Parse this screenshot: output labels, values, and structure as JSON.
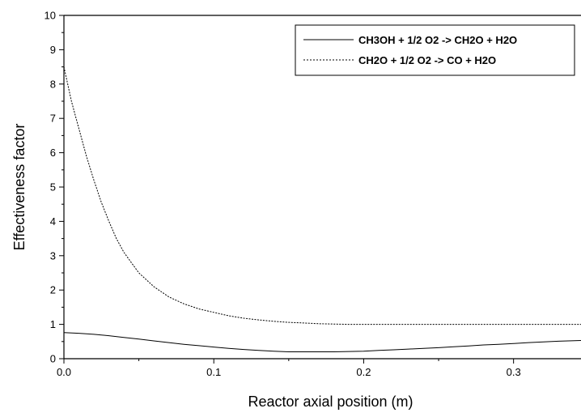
{
  "chart_data": {
    "type": "line",
    "xlabel": "Reactor axial position (m)",
    "ylabel": "Effectiveness factor",
    "xlim": [
      0.0,
      0.345
    ],
    "ylim": [
      0,
      10
    ],
    "x_ticks": [
      0.0,
      0.1,
      0.2,
      0.3
    ],
    "x_tick_labels": [
      "0.0",
      "0.1",
      "0.2",
      "0.3"
    ],
    "y_ticks": [
      0,
      1,
      2,
      3,
      4,
      5,
      6,
      7,
      8,
      9,
      10
    ],
    "y_tick_labels": [
      "0",
      "1",
      "2",
      "3",
      "4",
      "5",
      "6",
      "7",
      "8",
      "9",
      "10"
    ],
    "grid": false,
    "legend_position": "top-right",
    "series": [
      {
        "name": "CH3OH + 1/2 O2 -> CH2O + H2O",
        "line_style": "solid",
        "color": "#000000",
        "x": [
          0.0,
          0.01,
          0.02,
          0.03,
          0.04,
          0.05,
          0.06,
          0.07,
          0.08,
          0.09,
          0.1,
          0.11,
          0.12,
          0.13,
          0.14,
          0.15,
          0.16,
          0.17,
          0.18,
          0.19,
          0.2,
          0.21,
          0.22,
          0.23,
          0.24,
          0.25,
          0.26,
          0.27,
          0.28,
          0.29,
          0.3,
          0.31,
          0.32,
          0.33,
          0.345
        ],
        "y": [
          0.76,
          0.74,
          0.71,
          0.67,
          0.62,
          0.57,
          0.52,
          0.47,
          0.42,
          0.38,
          0.34,
          0.3,
          0.27,
          0.24,
          0.22,
          0.2,
          0.2,
          0.2,
          0.2,
          0.21,
          0.22,
          0.24,
          0.26,
          0.28,
          0.3,
          0.32,
          0.35,
          0.37,
          0.4,
          0.42,
          0.44,
          0.47,
          0.49,
          0.51,
          0.53
        ]
      },
      {
        "name": "CH2O + 1/2 O2 -> CO + H2O",
        "line_style": "dashed",
        "color": "#000000",
        "x": [
          0.0,
          0.005,
          0.01,
          0.015,
          0.02,
          0.025,
          0.03,
          0.035,
          0.04,
          0.045,
          0.05,
          0.06,
          0.07,
          0.08,
          0.09,
          0.1,
          0.11,
          0.12,
          0.13,
          0.14,
          0.15,
          0.16,
          0.17,
          0.18,
          0.19,
          0.2,
          0.22,
          0.24,
          0.26,
          0.28,
          0.3,
          0.32,
          0.345
        ],
        "y": [
          8.5,
          7.5,
          6.7,
          5.9,
          5.2,
          4.55,
          4.0,
          3.5,
          3.1,
          2.8,
          2.5,
          2.1,
          1.8,
          1.6,
          1.45,
          1.35,
          1.25,
          1.18,
          1.13,
          1.09,
          1.06,
          1.04,
          1.02,
          1.01,
          1.0,
          1.0,
          1.0,
          1.0,
          1.0,
          1.0,
          1.0,
          1.0,
          1.0
        ]
      }
    ]
  }
}
